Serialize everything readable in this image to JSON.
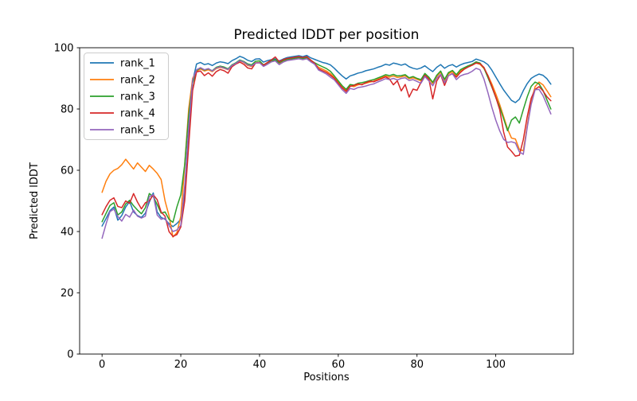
{
  "figure": {
    "background": "#ffffff",
    "spine_color": "#000000",
    "legend_border_color": "#cccccc"
  },
  "chart_data": {
    "type": "line",
    "title": "Predicted lDDT per position",
    "xlabel": "Positions",
    "ylabel": "Predicted lDDT",
    "xlim": [
      -5.7,
      119.7
    ],
    "ylim": [
      0,
      100
    ],
    "xticks": [
      0,
      20,
      40,
      60,
      80,
      100
    ],
    "yticks": [
      0,
      20,
      40,
      60,
      80,
      100
    ],
    "grid": false,
    "legend_position": "upper-left",
    "x": [
      0,
      1,
      2,
      3,
      4,
      5,
      6,
      7,
      8,
      9,
      10,
      11,
      12,
      13,
      14,
      15,
      16,
      17,
      18,
      19,
      20,
      21,
      22,
      23,
      24,
      25,
      26,
      27,
      28,
      29,
      30,
      31,
      32,
      33,
      34,
      35,
      36,
      37,
      38,
      39,
      40,
      41,
      42,
      43,
      44,
      45,
      46,
      47,
      48,
      49,
      50,
      51,
      52,
      53,
      54,
      55,
      56,
      57,
      58,
      59,
      60,
      61,
      62,
      63,
      64,
      65,
      66,
      67,
      68,
      69,
      70,
      71,
      72,
      73,
      74,
      75,
      76,
      77,
      78,
      79,
      80,
      81,
      82,
      83,
      84,
      85,
      86,
      87,
      88,
      89,
      90,
      91,
      92,
      93,
      94,
      95,
      96,
      97,
      98,
      99,
      100,
      101,
      102,
      103,
      104,
      105,
      106,
      107,
      108,
      109,
      110,
      111,
      112,
      113,
      114
    ],
    "series": [
      {
        "name": "rank_1",
        "color": "#1f77b4",
        "values": [
          41.8,
          44.2,
          46.8,
          48.0,
          43.7,
          45.2,
          48.0,
          49.8,
          46.4,
          45.2,
          44.6,
          46.0,
          49.6,
          52.6,
          46.4,
          44.6,
          44.0,
          42.6,
          41.6,
          42.6,
          44.0,
          52.0,
          72.0,
          89.0,
          94.7,
          95.2,
          94.5,
          94.8,
          94.2,
          95.0,
          95.4,
          95.2,
          94.8,
          95.8,
          96.4,
          97.2,
          96.7,
          95.9,
          95.5,
          96.3,
          96.4,
          95.3,
          95.8,
          96.1,
          96.4,
          95.7,
          96.3,
          96.8,
          97.0,
          97.2,
          97.4,
          97.1,
          97.5,
          96.7,
          96.2,
          95.7,
          95.2,
          94.9,
          94.4,
          93.3,
          92.0,
          90.8,
          89.8,
          90.8,
          91.2,
          91.7,
          92.0,
          92.5,
          92.8,
          93.1,
          93.6,
          94.0,
          94.6,
          94.3,
          95.0,
          94.7,
          94.3,
          94.7,
          93.8,
          93.3,
          93.0,
          93.4,
          94.1,
          93.1,
          92.2,
          93.6,
          94.5,
          93.3,
          94.1,
          94.5,
          93.7,
          94.4,
          94.9,
          95.2,
          95.5,
          96.3,
          95.9,
          95.4,
          94.5,
          92.7,
          90.5,
          88.3,
          86.2,
          84.5,
          82.8,
          82.1,
          83.2,
          86.0,
          88.3,
          90.0,
          90.8,
          91.4,
          91.0,
          89.9,
          88.1
        ]
      },
      {
        "name": "rank_2",
        "color": "#ff7f0e",
        "values": [
          52.8,
          56.4,
          58.8,
          60.0,
          60.6,
          61.8,
          63.6,
          62.0,
          60.4,
          62.4,
          61.0,
          59.6,
          61.6,
          60.4,
          59.0,
          57.0,
          50.0,
          45.2,
          38.2,
          39.6,
          45.0,
          62.0,
          80.0,
          90.0,
          92.3,
          93.1,
          92.4,
          92.8,
          92.2,
          93.2,
          93.6,
          93.3,
          92.8,
          94.1,
          94.8,
          95.7,
          95.2,
          94.2,
          93.9,
          95.1,
          95.2,
          94.1,
          94.7,
          95.5,
          95.8,
          94.7,
          95.4,
          95.9,
          96.1,
          96.3,
          96.5,
          96.2,
          96.5,
          95.6,
          94.8,
          93.6,
          93.0,
          92.4,
          91.5,
          90.3,
          88.7,
          87.2,
          86.0,
          87.6,
          87.3,
          87.9,
          88.1,
          88.4,
          88.8,
          89.1,
          89.7,
          90.2,
          90.8,
          90.4,
          90.8,
          90.3,
          90.5,
          90.8,
          89.9,
          90.2,
          89.7,
          89.2,
          91.2,
          90.0,
          88.3,
          90.6,
          92.0,
          89.3,
          91.5,
          92.2,
          90.8,
          92.4,
          93.2,
          93.8,
          94.3,
          95.0,
          94.6,
          93.2,
          91.0,
          88.2,
          85.0,
          81.5,
          77.5,
          73.5,
          70.5,
          70.2,
          66.8,
          66.4,
          74.5,
          82.5,
          87.3,
          88.8,
          87.9,
          86.0,
          84.0
        ]
      },
      {
        "name": "rank_3",
        "color": "#2ca02c",
        "values": [
          43.2,
          45.9,
          48.5,
          49.4,
          45.4,
          46.4,
          49.0,
          50.2,
          48.4,
          47.0,
          45.8,
          47.8,
          52.4,
          51.4,
          48.8,
          46.0,
          46.4,
          44.0,
          43.0,
          48.0,
          52.0,
          62.0,
          78.0,
          88.5,
          92.6,
          93.4,
          92.7,
          93.1,
          92.5,
          93.6,
          94.0,
          93.7,
          93.1,
          94.4,
          95.1,
          96.0,
          95.5,
          94.7,
          94.4,
          95.6,
          95.7,
          94.4,
          95.1,
          95.8,
          96.1,
          95.1,
          95.8,
          96.2,
          96.4,
          96.6,
          96.8,
          96.5,
          96.8,
          95.9,
          95.1,
          94.4,
          93.8,
          93.2,
          92.3,
          90.8,
          89.2,
          87.6,
          86.4,
          88.0,
          87.8,
          88.4,
          88.6,
          88.9,
          89.3,
          89.6,
          90.1,
          90.6,
          91.2,
          90.9,
          91.3,
          90.8,
          90.9,
          91.2,
          90.2,
          90.6,
          90.0,
          89.6,
          91.6,
          90.4,
          88.7,
          91.0,
          92.4,
          89.7,
          91.9,
          92.6,
          91.2,
          92.8,
          93.5,
          94.1,
          94.6,
          95.4,
          95.0,
          93.4,
          90.3,
          87.2,
          83.8,
          80.6,
          76.8,
          72.9,
          76.4,
          77.4,
          75.4,
          79.8,
          84.0,
          87.4,
          88.8,
          88.2,
          86.1,
          83.0,
          80.0
        ]
      },
      {
        "name": "rank_4",
        "color": "#d62728",
        "values": [
          45.5,
          48.1,
          50.2,
          51.0,
          48.2,
          47.8,
          50.0,
          49.2,
          52.4,
          49.6,
          47.4,
          49.4,
          50.0,
          52.0,
          50.4,
          46.4,
          45.0,
          40.0,
          38.4,
          39.0,
          41.5,
          50.0,
          68.0,
          86.0,
          92.1,
          92.4,
          90.9,
          91.8,
          90.7,
          92.2,
          92.9,
          92.5,
          91.7,
          93.8,
          94.7,
          95.3,
          94.6,
          93.4,
          93.1,
          95.0,
          95.1,
          94.3,
          95.2,
          96.0,
          97.0,
          95.4,
          96.1,
          96.5,
          96.7,
          96.9,
          97.1,
          96.8,
          97.1,
          96.0,
          94.9,
          93.1,
          92.5,
          91.9,
          91.0,
          90.0,
          88.4,
          86.9,
          85.7,
          87.4,
          87.7,
          88.2,
          87.9,
          88.6,
          89.1,
          88.9,
          89.4,
          89.9,
          90.5,
          89.8,
          87.9,
          89.2,
          85.9,
          88.0,
          83.9,
          86.5,
          86.1,
          88.7,
          91.0,
          89.8,
          83.3,
          89.1,
          91.2,
          87.7,
          90.9,
          91.6,
          90.4,
          91.9,
          93.0,
          93.7,
          94.3,
          95.0,
          94.8,
          93.6,
          90.9,
          87.4,
          83.9,
          79.8,
          72.5,
          67.6,
          66.2,
          64.6,
          64.9,
          70.0,
          77.5,
          83.5,
          86.4,
          87.3,
          85.9,
          84.0,
          82.7
        ]
      },
      {
        "name": "rank_5",
        "color": "#9467bd",
        "values": [
          37.8,
          42.4,
          46.5,
          47.3,
          44.9,
          43.4,
          45.6,
          44.7,
          47.0,
          45.0,
          44.4,
          45.0,
          51.4,
          52.0,
          45.4,
          44.0,
          44.4,
          42.0,
          40.0,
          40.5,
          42.0,
          55.0,
          74.0,
          89.5,
          92.8,
          93.5,
          92.8,
          93.2,
          92.4,
          93.4,
          93.8,
          93.4,
          92.9,
          94.2,
          94.9,
          95.8,
          95.3,
          94.4,
          94.1,
          95.0,
          95.1,
          93.9,
          94.6,
          95.4,
          95.7,
          94.5,
          95.3,
          95.8,
          96.0,
          96.2,
          96.4,
          96.1,
          96.4,
          95.4,
          94.6,
          92.7,
          92.1,
          91.4,
          90.4,
          89.5,
          87.9,
          86.3,
          85.1,
          86.7,
          86.4,
          87.0,
          87.2,
          87.5,
          87.9,
          88.2,
          88.8,
          89.3,
          89.9,
          89.6,
          90.0,
          89.5,
          90.0,
          90.2,
          89.3,
          89.6,
          89.0,
          88.4,
          90.6,
          89.2,
          87.6,
          90.0,
          91.3,
          88.6,
          90.9,
          91.5,
          89.6,
          90.8,
          91.3,
          91.6,
          92.3,
          93.3,
          92.8,
          89.8,
          85.4,
          80.6,
          76.4,
          72.9,
          70.1,
          69.1,
          69.3,
          68.9,
          66.0,
          65.2,
          74.0,
          81.5,
          86.3,
          86.4,
          84.4,
          81.4,
          78.4
        ]
      }
    ]
  }
}
